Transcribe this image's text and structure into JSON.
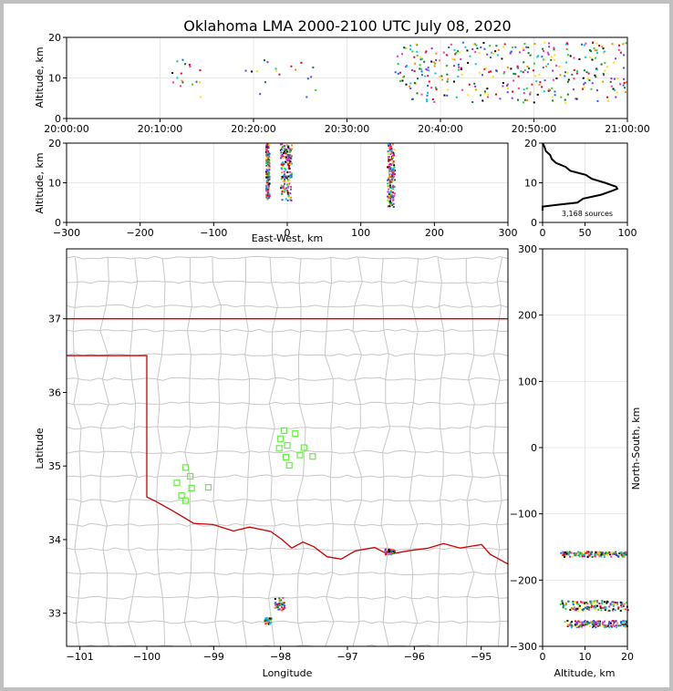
{
  "title": "Oklahoma LMA 2000-2100 UTC July 08, 2020",
  "colors": {
    "border": "#cc0000",
    "county": "#c8c8c8",
    "station": "#66ee44",
    "grid": "#e8e8e8",
    "source_palette": [
      "#0a7a2a",
      "#2bd12b",
      "#00c8e8",
      "#1f5fff",
      "#7a33ff",
      "#ff2fa8",
      "#e8001e",
      "#ff8a00",
      "#ffe100",
      "#000000"
    ]
  },
  "chart_data": [
    {
      "id": "time_height",
      "type": "scatter",
      "ylabel": "Altitude, km",
      "xlabel": "",
      "xlim_utc": [
        "20:00:00",
        "21:00:00"
      ],
      "ylim": [
        0,
        20
      ],
      "x_ticks": [
        "20:00:00",
        "20:10:00",
        "20:20:00",
        "20:30:00",
        "20:40:00",
        "20:50:00",
        "21:00:00"
      ],
      "y_ticks": [
        0,
        10,
        20
      ],
      "clusters": [
        {
          "t_min": [
            11,
            15
          ],
          "alt": [
            5,
            15
          ],
          "density": "sparse"
        },
        {
          "t_min": [
            19,
            27
          ],
          "alt": [
            5,
            15
          ],
          "density": "sparse"
        },
        {
          "t_min": [
            35,
            60
          ],
          "alt": [
            4,
            19
          ],
          "density": "dense"
        }
      ]
    },
    {
      "id": "ew_height",
      "type": "scatter",
      "ylabel": "Altitude, km",
      "xlabel": "East-West, km",
      "xlim": [
        -300,
        300
      ],
      "ylim": [
        0,
        20
      ],
      "x_ticks": [
        -300,
        -200,
        -100,
        0,
        100,
        200,
        300
      ],
      "y_ticks": [
        0,
        10,
        20
      ],
      "clusters": [
        {
          "x_km": [
            -30,
            -25
          ],
          "alt": [
            6,
            20
          ]
        },
        {
          "x_km": [
            -10,
            5
          ],
          "alt": [
            5,
            20
          ]
        },
        {
          "x_km": [
            135,
            145
          ],
          "alt": [
            4,
            20
          ]
        }
      ]
    },
    {
      "id": "histogram",
      "type": "line",
      "xlabel": "",
      "xlim": [
        0,
        100
      ],
      "ylim": [
        0,
        20
      ],
      "x_ticks": [
        0,
        50,
        100
      ],
      "y_ticks": [
        0,
        10,
        20
      ],
      "annotation": "3,168 sources",
      "profile": [
        {
          "alt": 4.0,
          "count": 0
        },
        {
          "alt": 4.5,
          "count": 18
        },
        {
          "alt": 5.0,
          "count": 40
        },
        {
          "alt": 6.0,
          "count": 50
        },
        {
          "alt": 7.0,
          "count": 68
        },
        {
          "alt": 8.0,
          "count": 82
        },
        {
          "alt": 8.5,
          "count": 88
        },
        {
          "alt": 9.0,
          "count": 85
        },
        {
          "alt": 10.0,
          "count": 72
        },
        {
          "alt": 11.0,
          "count": 60
        },
        {
          "alt": 12.0,
          "count": 48
        },
        {
          "alt": 13.0,
          "count": 35
        },
        {
          "alt": 14.0,
          "count": 25
        },
        {
          "alt": 15.0,
          "count": 18
        },
        {
          "alt": 16.0,
          "count": 13
        },
        {
          "alt": 17.0,
          "count": 10
        },
        {
          "alt": 18.0,
          "count": 6
        },
        {
          "alt": 19.0,
          "count": 3
        },
        {
          "alt": 20.0,
          "count": 0
        }
      ]
    },
    {
      "id": "plan_view",
      "type": "scatter",
      "xlabel": "Longitude",
      "ylabel": "Latitude",
      "xlim": [
        -101.2,
        -94.6
      ],
      "ylim": [
        32.55,
        37.95
      ],
      "x_ticks": [
        -101,
        -100,
        -99,
        -98,
        -97,
        -96,
        -95
      ],
      "y_ticks": [
        33,
        34,
        35,
        36,
        37
      ],
      "stations": [
        {
          "lon": -97.95,
          "lat": 35.48
        },
        {
          "lon": -97.78,
          "lat": 35.44
        },
        {
          "lon": -98.0,
          "lat": 35.37
        },
        {
          "lon": -97.9,
          "lat": 35.28
        },
        {
          "lon": -98.02,
          "lat": 35.24
        },
        {
          "lon": -97.65,
          "lat": 35.25
        },
        {
          "lon": -97.71,
          "lat": 35.15
        },
        {
          "lon": -97.92,
          "lat": 35.12
        },
        {
          "lon": -97.52,
          "lat": 35.13
        },
        {
          "lon": -97.87,
          "lat": 35.01
        },
        {
          "lon": -99.42,
          "lat": 34.98
        },
        {
          "lon": -99.35,
          "lat": 34.86
        },
        {
          "lon": -99.55,
          "lat": 34.77
        },
        {
          "lon": -99.33,
          "lat": 34.7
        },
        {
          "lon": -99.08,
          "lat": 34.71
        },
        {
          "lon": -99.48,
          "lat": 34.6
        },
        {
          "lon": -99.42,
          "lat": 34.53
        }
      ],
      "source_clusters": [
        {
          "lon": [
            -98.1,
            -97.95
          ],
          "lat": [
            33.05,
            33.22
          ]
        },
        {
          "lon": [
            -98.25,
            -98.15
          ],
          "lat": [
            32.86,
            32.95
          ]
        },
        {
          "lon": [
            -96.45,
            -96.3
          ],
          "lat": [
            33.8,
            33.88
          ]
        }
      ]
    },
    {
      "id": "ns_height",
      "type": "scatter",
      "xlabel": "Altitude, km",
      "ylabel": "North-South, km",
      "xlim": [
        0,
        20
      ],
      "ylim": [
        -300,
        300
      ],
      "x_ticks": [
        0,
        10,
        20
      ],
      "y_ticks": [
        -300,
        -200,
        -100,
        0,
        100,
        200,
        300
      ],
      "clusters": [
        {
          "ns_km": [
            -164,
            -156
          ],
          "alt": [
            4,
            20
          ]
        },
        {
          "ns_km": [
            -245,
            -230
          ],
          "alt": [
            4,
            20
          ]
        },
        {
          "ns_km": [
            -270,
            -260
          ],
          "alt": [
            5,
            20
          ]
        }
      ]
    }
  ]
}
